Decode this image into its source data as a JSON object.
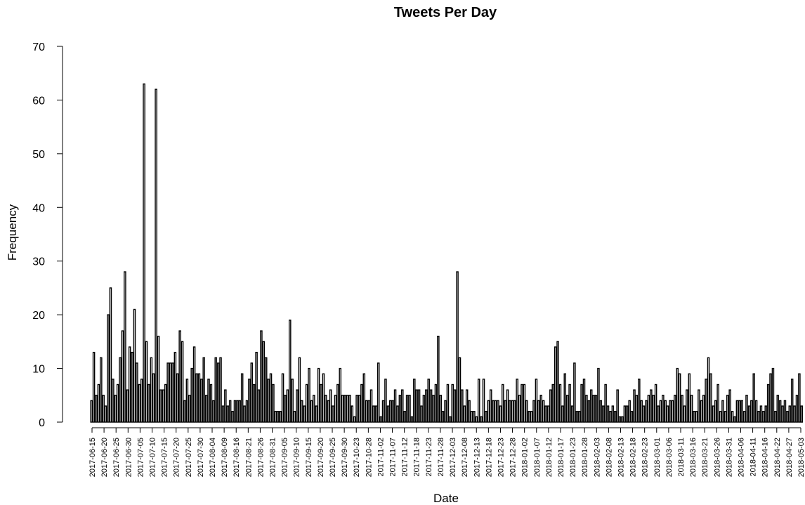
{
  "chart_data": {
    "type": "bar",
    "title": "Tweets Per Day",
    "xlabel": "Date",
    "ylabel": "Frequency",
    "ylim": [
      0,
      70
    ],
    "y_ticks": [
      0,
      10,
      20,
      30,
      40,
      50,
      60,
      70
    ],
    "bar_color": "#000000",
    "grid": false,
    "legend": "none",
    "x_tick_labels": [
      "2017-06-15",
      "2017-06-20",
      "2017-06-25",
      "2017-06-30",
      "2017-07-05",
      "2017-07-10",
      "2017-07-15",
      "2017-07-20",
      "2017-07-25",
      "2017-07-30",
      "2017-08-04",
      "2017-08-09",
      "2017-08-16",
      "2017-08-21",
      "2017-08-26",
      "2017-08-31",
      "2017-09-05",
      "2017-09-10",
      "2017-09-15",
      "2017-09-20",
      "2017-09-25",
      "2017-09-30",
      "2017-10-23",
      "2017-10-28",
      "2017-11-02",
      "2017-11-07",
      "2017-11-12",
      "2017-11-18",
      "2017-11-23",
      "2017-11-28",
      "2017-12-03",
      "2017-12-08",
      "2017-12-13",
      "2017-12-18",
      "2017-12-23",
      "2017-12-28",
      "2018-01-02",
      "2018-01-07",
      "2018-01-12",
      "2018-01-17",
      "2018-01-23",
      "2018-01-28",
      "2018-02-03",
      "2018-02-08",
      "2018-02-13",
      "2018-02-18",
      "2018-02-23",
      "2018-03-01",
      "2018-03-06",
      "2018-03-11",
      "2018-03-16",
      "2018-03-21",
      "2018-03-26",
      "2018-03-31",
      "2018-04-06",
      "2018-04-11",
      "2018-04-16",
      "2018-04-22",
      "2018-04-27",
      "2018-05-03"
    ],
    "values": [
      4,
      13,
      5,
      7,
      12,
      5,
      3,
      20,
      25,
      8,
      5,
      7,
      12,
      17,
      28,
      6,
      14,
      13,
      21,
      11,
      7,
      8,
      63,
      15,
      7,
      12,
      9,
      62,
      16,
      6,
      6,
      7,
      11,
      11,
      11,
      13,
      9,
      17,
      15,
      4,
      8,
      5,
      10,
      14,
      9,
      9,
      8,
      12,
      5,
      8,
      7,
      4,
      12,
      11,
      12,
      3,
      6,
      3,
      4,
      2,
      4,
      4,
      4,
      9,
      3,
      4,
      8,
      11,
      7,
      13,
      6,
      17,
      15,
      12,
      8,
      9,
      7,
      2,
      2,
      2,
      9,
      5,
      6,
      19,
      8,
      2,
      6,
      12,
      4,
      3,
      7,
      10,
      4,
      5,
      3,
      10,
      7,
      9,
      5,
      4,
      6,
      3,
      5,
      7,
      10,
      5,
      5,
      5,
      5,
      3,
      1,
      5,
      5,
      7,
      9,
      4,
      4,
      6,
      3,
      3,
      11,
      1,
      4,
      8,
      3,
      4,
      4,
      6,
      3,
      5,
      6,
      2,
      5,
      5,
      1,
      8,
      6,
      6,
      3,
      5,
      6,
      8,
      6,
      5,
      7,
      16,
      5,
      2,
      4,
      7,
      1,
      7,
      6,
      28,
      12,
      6,
      3,
      6,
      4,
      2,
      2,
      1,
      8,
      1,
      8,
      2,
      4,
      6,
      4,
      4,
      4,
      3,
      7,
      4,
      6,
      4,
      4,
      4,
      8,
      5,
      7,
      7,
      4,
      2,
      2,
      4,
      8,
      4,
      5,
      4,
      3,
      3,
      6,
      7,
      14,
      15,
      7,
      3,
      9,
      5,
      7,
      3,
      11,
      2,
      2,
      7,
      8,
      5,
      4,
      6,
      5,
      5,
      10,
      4,
      3,
      7,
      3,
      2,
      3,
      2,
      6,
      1,
      1,
      3,
      3,
      4,
      2,
      6,
      5,
      8,
      4,
      3,
      4,
      5,
      6,
      5,
      7,
      3,
      4,
      5,
      4,
      3,
      4,
      4,
      5,
      10,
      9,
      5,
      3,
      6,
      9,
      5,
      2,
      2,
      6,
      4,
      5,
      8,
      12,
      9,
      3,
      4,
      7,
      2,
      4,
      2,
      5,
      6,
      2,
      1,
      4,
      4,
      4,
      2,
      5,
      3,
      4,
      9,
      4,
      2,
      3,
      2,
      3,
      7,
      9,
      10,
      2,
      5,
      4,
      3,
      4,
      2,
      3,
      8,
      3,
      5,
      9,
      3
    ]
  }
}
